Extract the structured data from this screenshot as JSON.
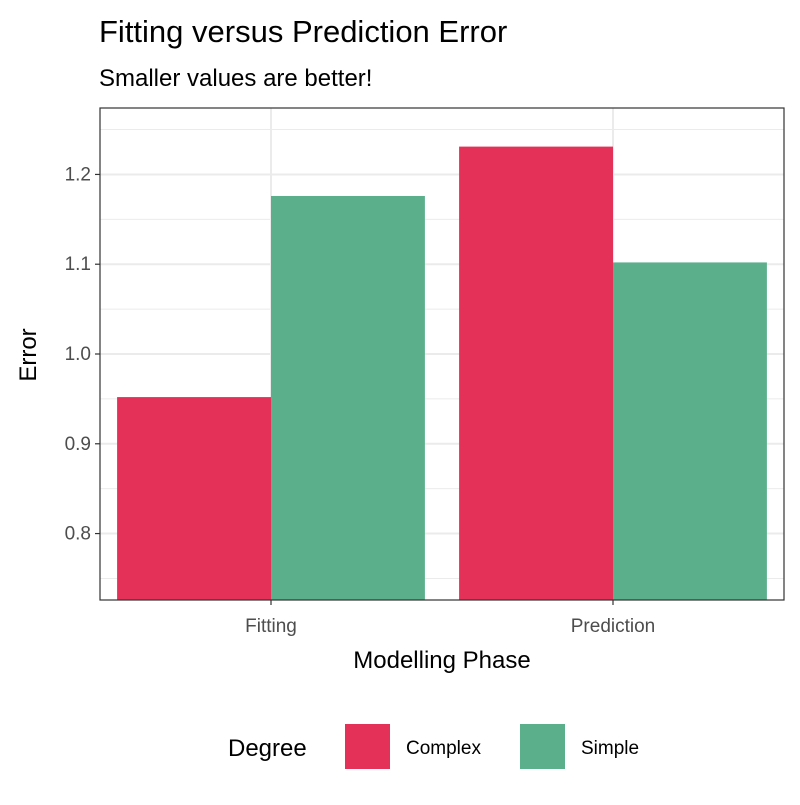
{
  "chart_data": {
    "type": "bar",
    "title": "Fitting versus Prediction Error",
    "subtitle": "Smaller values are better!",
    "xlabel": "Modelling Phase",
    "ylabel": "Error",
    "categories": [
      "Fitting",
      "Prediction"
    ],
    "series": [
      {
        "name": "Complex",
        "color": "#E33157",
        "values": [
          0.952,
          1.231
        ]
      },
      {
        "name": "Simple",
        "color": "#5BAF8A",
        "values": [
          1.176,
          1.102
        ]
      }
    ],
    "ylim": [
      0.726,
      1.274
    ],
    "yticks": [
      0.8,
      0.9,
      1.0,
      1.1,
      1.2
    ],
    "ytick_labels": [
      "0.8",
      "0.9",
      "1.0",
      "1.1",
      "1.2"
    ],
    "grid": true,
    "legend": {
      "title": "Degree",
      "position": "bottom",
      "entries": [
        "Complex",
        "Simple"
      ]
    }
  }
}
